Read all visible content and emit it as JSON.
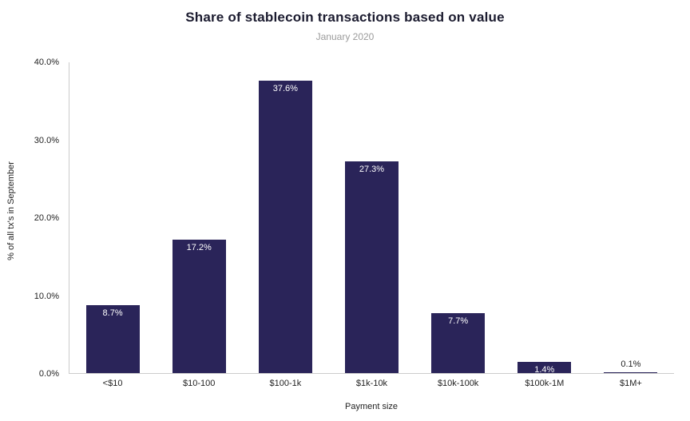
{
  "chart": {
    "title": "Share of stablecoin transactions based on value",
    "subtitle": "January 2020",
    "xlabel": "Payment size",
    "ylabel": "% of all tx's in September"
  },
  "chart_data": {
    "type": "bar",
    "title": "Share of stablecoin transactions based on value",
    "subtitle": "January 2020",
    "categories": [
      "<$10",
      "$10-100",
      "$100-1k",
      "$1k-10k",
      "$10k-100k",
      "$100k-1M",
      "$1M+"
    ],
    "values": [
      8.7,
      17.2,
      37.6,
      27.3,
      7.7,
      1.4,
      0.1
    ],
    "value_labels": [
      "8.7%",
      "17.2%",
      "37.6%",
      "27.3%",
      "7.7%",
      "1.4%",
      "0.1%"
    ],
    "xlabel": "Payment size",
    "ylabel": "% of all tx's in September",
    "ylim": [
      0,
      40
    ],
    "yticks": [
      0,
      10,
      20,
      30,
      40
    ],
    "ytick_labels": [
      "0.0%",
      "10.0%",
      "20.0%",
      "30.0%",
      "40.0%"
    ],
    "bar_color": "#2a2459",
    "grid": false,
    "legend": false,
    "background_color": "#ffffff"
  }
}
